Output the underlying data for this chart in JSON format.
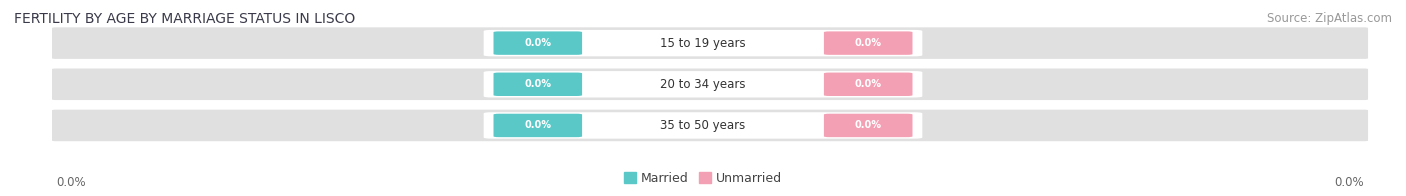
{
  "title": "FERTILITY BY AGE BY MARRIAGE STATUS IN LISCO",
  "source": "Source: ZipAtlas.com",
  "age_groups": [
    "15 to 19 years",
    "20 to 34 years",
    "35 to 50 years"
  ],
  "married_color": "#5BC8C8",
  "unmarried_color": "#F4A0B4",
  "bar_bg_color": "#E0E0E0",
  "title_fontsize": 10,
  "source_fontsize": 8.5,
  "label_fontsize": 8.5,
  "legend_fontsize": 9,
  "background_color": "#FFFFFF",
  "value_label": "0.0%",
  "left_axis_label": "0.0%",
  "right_axis_label": "0.0%"
}
